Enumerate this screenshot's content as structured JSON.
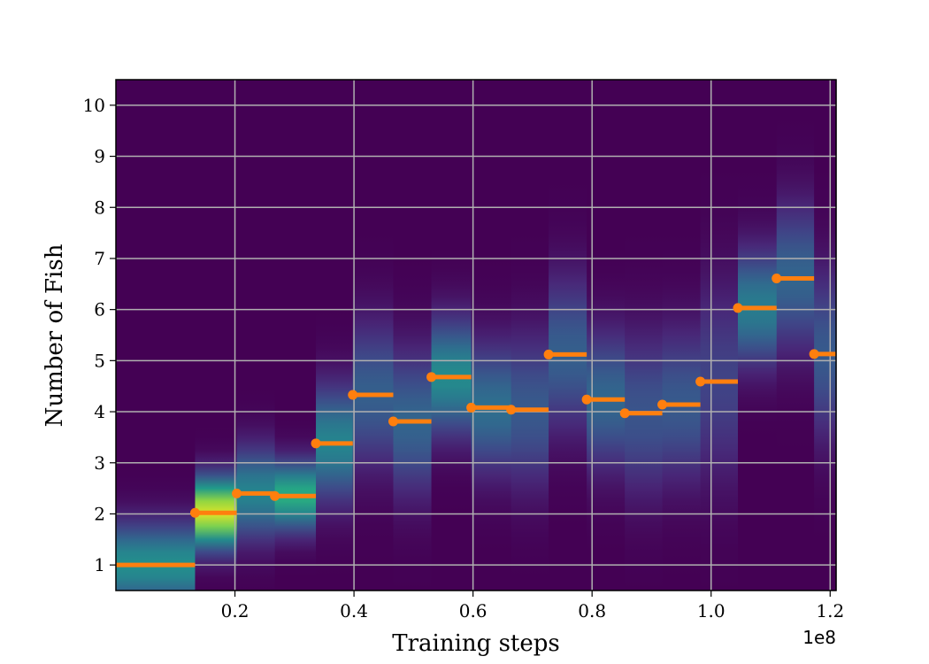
{
  "chart_data": {
    "type": "heatmap",
    "title": "",
    "xlabel": "Training steps",
    "ylabel": "Number of Fish",
    "x_offset_text": "1e8",
    "xlim": [
      0.0,
      1.21
    ],
    "ylim": [
      0.5,
      10.5
    ],
    "xticks": [
      0.2,
      0.4,
      0.6,
      0.8,
      1.0,
      1.2
    ],
    "xtick_labels": [
      "0.2",
      "0.4",
      "0.6",
      "0.8",
      "1.0",
      "1.2"
    ],
    "yticks": [
      1,
      2,
      3,
      4,
      5,
      6,
      7,
      8,
      9,
      10
    ],
    "ytick_labels": [
      "1",
      "2",
      "3",
      "4",
      "5",
      "6",
      "7",
      "8",
      "9",
      "10"
    ],
    "grid": true,
    "colormap": "viridis",
    "background_color": "#440154",
    "marker_color": "#ff7f0e",
    "grid_color": "#b0b0b0",
    "segments": [
      {
        "x_start": 0.0,
        "x_end": 0.133,
        "mean": 1.0,
        "spread": 0.55,
        "peak": 0.5
      },
      {
        "x_start": 0.133,
        "x_end": 0.203,
        "mean": 2.02,
        "spread": 0.45,
        "peak": 0.95
      },
      {
        "x_start": 0.203,
        "x_end": 0.267,
        "mean": 2.4,
        "spread": 0.6,
        "peak": 0.45
      },
      {
        "x_start": 0.267,
        "x_end": 0.336,
        "mean": 2.35,
        "spread": 0.45,
        "peak": 0.62
      },
      {
        "x_start": 0.336,
        "x_end": 0.398,
        "mean": 3.38,
        "spread": 0.75,
        "peak": 0.45
      },
      {
        "x_start": 0.398,
        "x_end": 0.466,
        "mean": 4.33,
        "spread": 0.95,
        "peak": 0.3
      },
      {
        "x_start": 0.466,
        "x_end": 0.53,
        "mean": 3.81,
        "spread": 0.95,
        "peak": 0.32
      },
      {
        "x_start": 0.53,
        "x_end": 0.597,
        "mean": 4.68,
        "spread": 0.75,
        "peak": 0.48
      },
      {
        "x_start": 0.597,
        "x_end": 0.664,
        "mean": 4.08,
        "spread": 0.85,
        "peak": 0.36
      },
      {
        "x_start": 0.664,
        "x_end": 0.727,
        "mean": 4.04,
        "spread": 1.0,
        "peak": 0.28
      },
      {
        "x_start": 0.727,
        "x_end": 0.791,
        "mean": 5.12,
        "spread": 1.0,
        "peak": 0.3
      },
      {
        "x_start": 0.791,
        "x_end": 0.855,
        "mean": 4.24,
        "spread": 0.9,
        "peak": 0.33
      },
      {
        "x_start": 0.855,
        "x_end": 0.918,
        "mean": 3.97,
        "spread": 1.05,
        "peak": 0.26
      },
      {
        "x_start": 0.918,
        "x_end": 0.982,
        "mean": 4.14,
        "spread": 1.0,
        "peak": 0.28
      },
      {
        "x_start": 0.982,
        "x_end": 1.045,
        "mean": 4.59,
        "spread": 1.3,
        "peak": 0.2
      },
      {
        "x_start": 1.045,
        "x_end": 1.11,
        "mean": 6.03,
        "spread": 0.75,
        "peak": 0.42
      },
      {
        "x_start": 1.11,
        "x_end": 1.173,
        "mean": 6.61,
        "spread": 0.95,
        "peak": 0.32
      },
      {
        "x_start": 1.173,
        "x_end": 1.21,
        "mean": 5.13,
        "spread": 1.1,
        "peak": 0.28
      }
    ]
  }
}
